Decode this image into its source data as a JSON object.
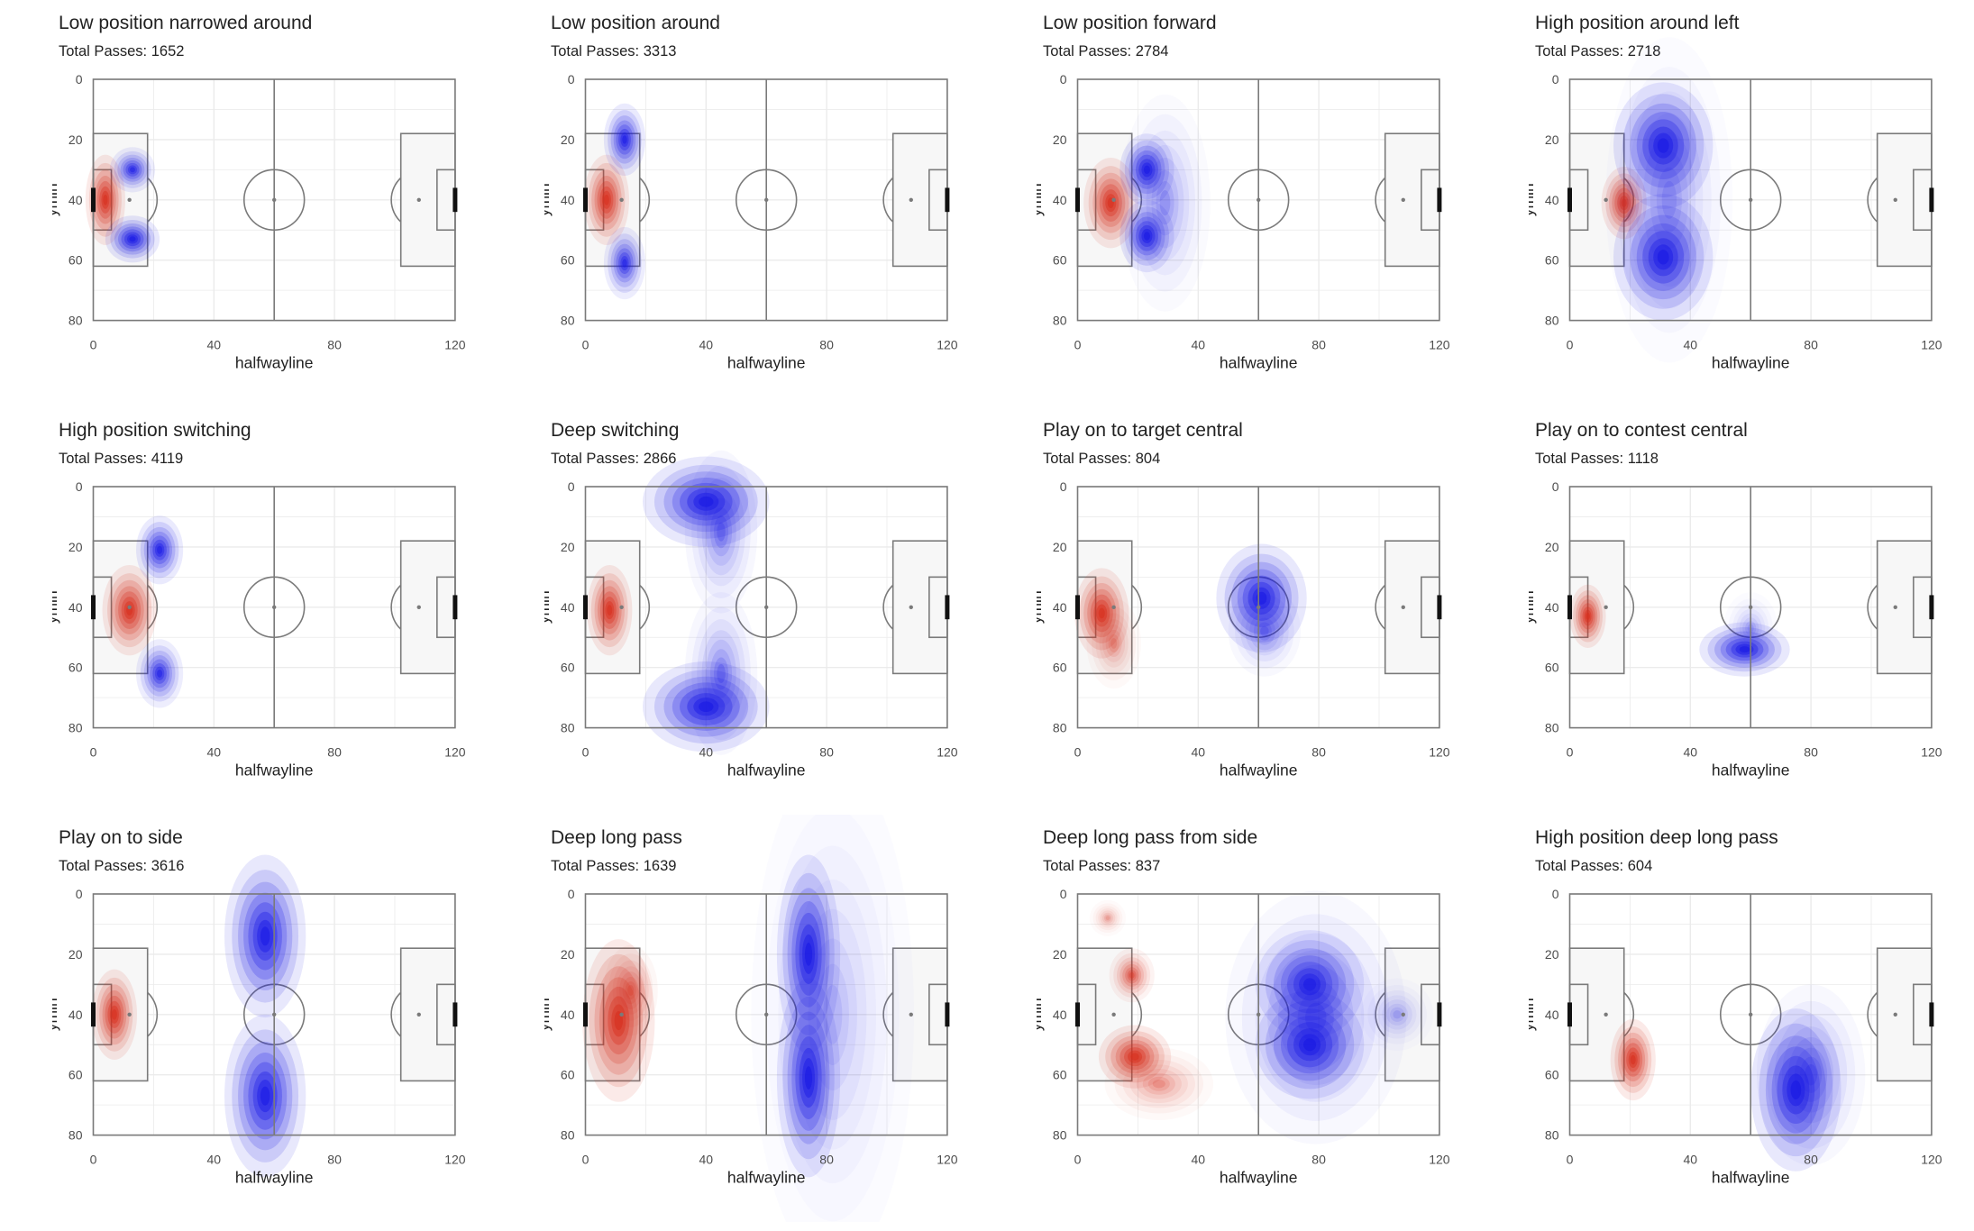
{
  "axis": {
    "xlabel": "halfwayline",
    "ylabel": "ymin",
    "xticks": [
      0,
      40,
      80,
      120
    ],
    "yticks": [
      0,
      20,
      40,
      60,
      80
    ],
    "xlim": [
      0,
      120
    ],
    "ylim": [
      0,
      80
    ]
  },
  "colors": {
    "origin": "#d7301f",
    "destination": "#1a1ae6",
    "pitch_line": "#7a7a7a",
    "grid": "#ebebeb",
    "box_fill": "#f7f7f7"
  },
  "chart_data": [
    {
      "type": "heatmap",
      "title": "Low position narrowed around",
      "subtitle": "Total Passes: 1652",
      "red": [
        {
          "x": 4,
          "y": 40,
          "sx": 2.2,
          "sy": 5,
          "w": 1
        }
      ],
      "blue": [
        {
          "x": 13,
          "y": 30,
          "sx": 2.5,
          "sy": 2.5,
          "w": 0.8
        },
        {
          "x": 13,
          "y": 53,
          "sx": 3,
          "sy": 2.6,
          "w": 1
        }
      ]
    },
    {
      "type": "heatmap",
      "title": "Low position around",
      "subtitle": "Total Passes: 3313",
      "red": [
        {
          "x": 7,
          "y": 40,
          "sx": 2.5,
          "sy": 5,
          "w": 1
        }
      ],
      "blue": [
        {
          "x": 13,
          "y": 20,
          "sx": 2.3,
          "sy": 4,
          "w": 0.9
        },
        {
          "x": 13,
          "y": 61,
          "sx": 2.3,
          "sy": 4,
          "w": 0.8
        }
      ]
    },
    {
      "type": "heatmap",
      "title": "Low position forward",
      "subtitle": "Total Passes: 2784",
      "red": [
        {
          "x": 11,
          "y": 41,
          "sx": 3,
          "sy": 5,
          "w": 1
        }
      ],
      "blue": [
        {
          "x": 23,
          "y": 30,
          "sx": 3,
          "sy": 4,
          "w": 1
        },
        {
          "x": 23,
          "y": 52,
          "sx": 3,
          "sy": 4,
          "w": 1
        },
        {
          "x": 29,
          "y": 41,
          "sx": 5,
          "sy": 12,
          "w": 0.25
        }
      ]
    },
    {
      "type": "heatmap",
      "title": "High position around left",
      "subtitle": "Total Passes: 2718",
      "red": [
        {
          "x": 18,
          "y": 41,
          "sx": 2.5,
          "sy": 4,
          "w": 1
        }
      ],
      "blue": [
        {
          "x": 31,
          "y": 22,
          "sx": 5.5,
          "sy": 7,
          "w": 1
        },
        {
          "x": 31,
          "y": 59,
          "sx": 5.5,
          "sy": 7,
          "w": 1
        },
        {
          "x": 33,
          "y": 40,
          "sx": 7,
          "sy": 18,
          "w": 0.2
        }
      ]
    },
    {
      "type": "heatmap",
      "title": "High position switching",
      "subtitle": "Total Passes: 4119",
      "red": [
        {
          "x": 12,
          "y": 41,
          "sx": 3,
          "sy": 5,
          "w": 1
        }
      ],
      "blue": [
        {
          "x": 22,
          "y": 21,
          "sx": 2.6,
          "sy": 3.8,
          "w": 0.9
        },
        {
          "x": 22,
          "y": 62,
          "sx": 2.6,
          "sy": 3.8,
          "w": 0.8
        }
      ]
    },
    {
      "type": "heatmap",
      "title": "Deep switching",
      "subtitle": "Total Passes: 2866",
      "red": [
        {
          "x": 8,
          "y": 41,
          "sx": 2.5,
          "sy": 5,
          "w": 1
        }
      ],
      "blue": [
        {
          "x": 40,
          "y": 5,
          "sx": 7,
          "sy": 5,
          "w": 1
        },
        {
          "x": 45,
          "y": 15,
          "sx": 4,
          "sy": 9,
          "w": 0.35
        },
        {
          "x": 40,
          "y": 73,
          "sx": 7,
          "sy": 5,
          "w": 1
        },
        {
          "x": 45,
          "y": 62,
          "sx": 4,
          "sy": 9,
          "w": 0.35
        }
      ]
    },
    {
      "type": "heatmap",
      "title": "Play on to target central",
      "subtitle": "Total Passes: 804",
      "red": [
        {
          "x": 8,
          "y": 42,
          "sx": 3,
          "sy": 5,
          "w": 1
        },
        {
          "x": 12,
          "y": 52,
          "sx": 3,
          "sy": 5,
          "w": 0.3
        }
      ],
      "blue": [
        {
          "x": 61,
          "y": 37,
          "sx": 5,
          "sy": 6,
          "w": 1
        },
        {
          "x": 62,
          "y": 48,
          "sx": 4,
          "sy": 5,
          "w": 0.3
        }
      ]
    },
    {
      "type": "heatmap",
      "title": "Play on to contest central",
      "subtitle": "Total Passes: 1118",
      "red": [
        {
          "x": 6,
          "y": 43,
          "sx": 2,
          "sy": 3.5,
          "w": 1
        }
      ],
      "blue": [
        {
          "x": 58,
          "y": 54,
          "sx": 5,
          "sy": 3,
          "w": 1
        },
        {
          "x": 60,
          "y": 47,
          "sx": 3,
          "sy": 4,
          "w": 0.2
        }
      ]
    },
    {
      "type": "heatmap",
      "title": "Play on to side",
      "subtitle": "Total Passes: 3616",
      "red": [
        {
          "x": 7,
          "y": 40,
          "sx": 2.5,
          "sy": 5,
          "w": 1
        }
      ],
      "blue": [
        {
          "x": 57,
          "y": 14,
          "sx": 4.5,
          "sy": 9,
          "w": 1
        },
        {
          "x": 57,
          "y": 67,
          "sx": 4.5,
          "sy": 9,
          "w": 1
        }
      ]
    },
    {
      "type": "heatmap",
      "title": "Deep long pass",
      "subtitle": "Total Passes: 1639",
      "red": [
        {
          "x": 11,
          "y": 42,
          "sx": 4,
          "sy": 9,
          "w": 1
        },
        {
          "x": 15,
          "y": 32,
          "sx": 3,
          "sy": 5,
          "w": 0.4
        }
      ],
      "blue": [
        {
          "x": 74,
          "y": 20,
          "sx": 3.5,
          "sy": 11,
          "w": 1
        },
        {
          "x": 74,
          "y": 61,
          "sx": 3.5,
          "sy": 11,
          "w": 1
        },
        {
          "x": 82,
          "y": 40,
          "sx": 9,
          "sy": 28,
          "w": 0.15
        }
      ]
    },
    {
      "type": "heatmap",
      "title": "Deep long pass from side",
      "subtitle": "Total Passes: 837",
      "red": [
        {
          "x": 19,
          "y": 54,
          "sx": 4,
          "sy": 3.5,
          "w": 1
        },
        {
          "x": 27,
          "y": 63,
          "sx": 6,
          "sy": 4,
          "w": 0.3
        },
        {
          "x": 18,
          "y": 27,
          "sx": 2.5,
          "sy": 3,
          "w": 0.6
        },
        {
          "x": 10,
          "y": 8,
          "sx": 2,
          "sy": 2,
          "w": 0.25
        }
      ],
      "blue": [
        {
          "x": 77,
          "y": 30,
          "sx": 6,
          "sy": 6,
          "w": 0.9
        },
        {
          "x": 77,
          "y": 50,
          "sx": 6,
          "sy": 6,
          "w": 1
        },
        {
          "x": 79,
          "y": 41,
          "sx": 10,
          "sy": 14,
          "w": 0.3
        },
        {
          "x": 106,
          "y": 40,
          "sx": 4,
          "sy": 4,
          "w": 0.2
        }
      ]
    },
    {
      "type": "heatmap",
      "title": "High position deep long pass",
      "subtitle": "Total Passes: 604",
      "red": [
        {
          "x": 21,
          "y": 55,
          "sx": 2.5,
          "sy": 4.5,
          "w": 1
        }
      ],
      "blue": [
        {
          "x": 75,
          "y": 65,
          "sx": 5,
          "sy": 9,
          "w": 1
        },
        {
          "x": 80,
          "y": 60,
          "sx": 6,
          "sy": 10,
          "w": 0.3
        }
      ]
    }
  ]
}
